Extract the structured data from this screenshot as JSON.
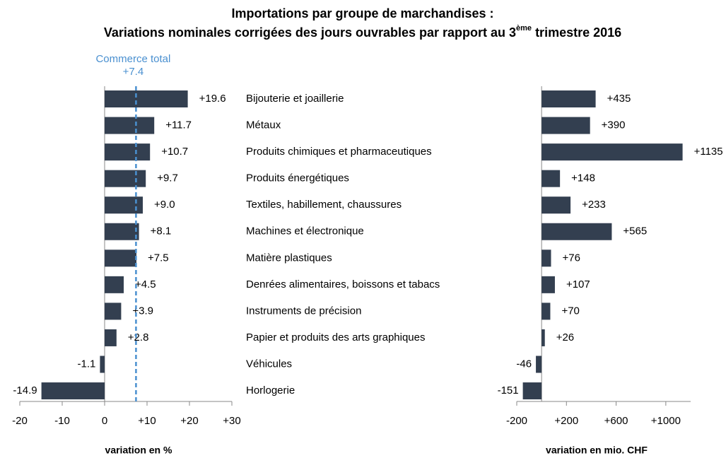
{
  "title": "Importations par groupe de marchandises :",
  "subtitle": {
    "before": "Variations nominales corrigées des jours ouvrables par rapport au 3",
    "sup": "ème",
    "after": " trimestre 2016"
  },
  "chart_data": [
    {
      "type": "barh",
      "xlabel": "variation en %",
      "color": "#333f50",
      "categories": [
        "Bijouterie et joaillerie",
        "Métaux",
        "Produits chimiques et pharmaceutiques",
        "Produits énergétiques",
        "Textiles, habillement, chaussures",
        "Machines et électronique",
        "Matière plastiques",
        "Denrées alimentaires, boissons et tabacs",
        "Instruments de précision",
        "Papier et produits des arts graphiques",
        "Véhicules",
        "Horlogerie"
      ],
      "values": [
        19.6,
        11.7,
        10.7,
        9.7,
        9.0,
        8.1,
        7.5,
        4.5,
        3.9,
        2.8,
        -1.1,
        -14.9
      ],
      "value_labels": [
        "+19.6",
        "+11.7",
        "+10.7",
        "+9.7",
        "+9.0",
        "+8.1",
        "+7.5",
        "+4.5",
        "+3.9",
        "+2.8",
        "-1.1",
        "-14.9"
      ],
      "xlim": [
        -20,
        30
      ],
      "xticks": [
        -20,
        -10,
        0,
        {
          "value": 10,
          "label": "+10"
        },
        {
          "value": 20,
          "label": "+20"
        },
        {
          "value": 30,
          "label": "+30"
        }
      ],
      "reference_line": {
        "label": "Commerce total",
        "value": 7.4,
        "value_label": "+7.4",
        "color": "#4a90d0"
      }
    },
    {
      "type": "barh",
      "xlabel": "variation en mio. CHF",
      "color": "#333f50",
      "values": [
        435,
        390,
        1135,
        148,
        233,
        565,
        76,
        107,
        70,
        26,
        -46,
        -151
      ],
      "value_labels": [
        "+435",
        "+390",
        "+1135",
        "+148",
        "+233",
        "+565",
        "+76",
        "+107",
        "+70",
        "+26",
        "-46",
        "-151"
      ],
      "xlim": [
        -200,
        1200
      ],
      "xticks": [
        -200,
        {
          "value": 200,
          "label": "+200"
        },
        {
          "value": 600,
          "label": "+600"
        },
        {
          "value": 1000,
          "label": "+1000"
        }
      ]
    }
  ]
}
